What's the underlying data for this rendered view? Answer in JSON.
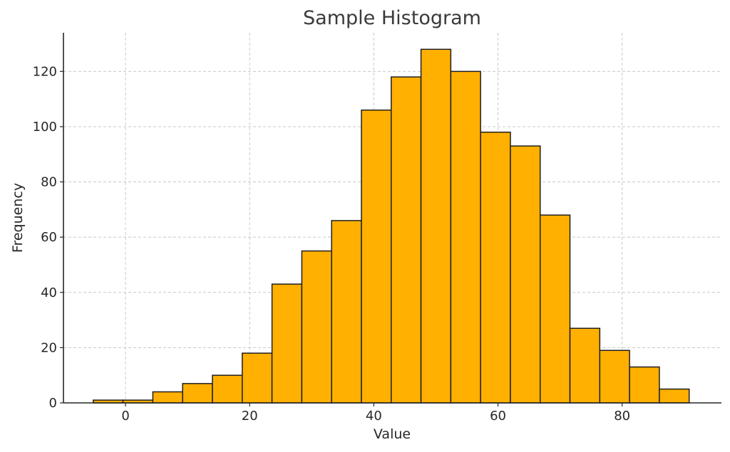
{
  "chart_data": {
    "type": "bar",
    "title": "Sample Histogram",
    "xlabel": "Value",
    "ylabel": "Frequency",
    "bin_edges": [
      -5.2,
      -0.4,
      4.4,
      9.2,
      14.0,
      18.8,
      23.6,
      28.4,
      33.2,
      38.0,
      42.8,
      47.6,
      52.4,
      57.2,
      62.0,
      66.8,
      71.6,
      76.4,
      81.2,
      86.0,
      90.8
    ],
    "values": [
      1,
      1,
      4,
      7,
      10,
      18,
      43,
      55,
      66,
      106,
      118,
      128,
      120,
      98,
      93,
      68,
      27,
      19,
      13,
      5
    ],
    "xlim": [
      -10,
      96
    ],
    "ylim": [
      0,
      134
    ],
    "xticks": [
      "0",
      "20",
      "40",
      "60",
      "80"
    ],
    "yticks": [
      "0",
      "20",
      "40",
      "60",
      "80",
      "100",
      "120"
    ],
    "grid": true,
    "bar_color": "#FFB000",
    "edge_color": "#1F1F1F"
  }
}
